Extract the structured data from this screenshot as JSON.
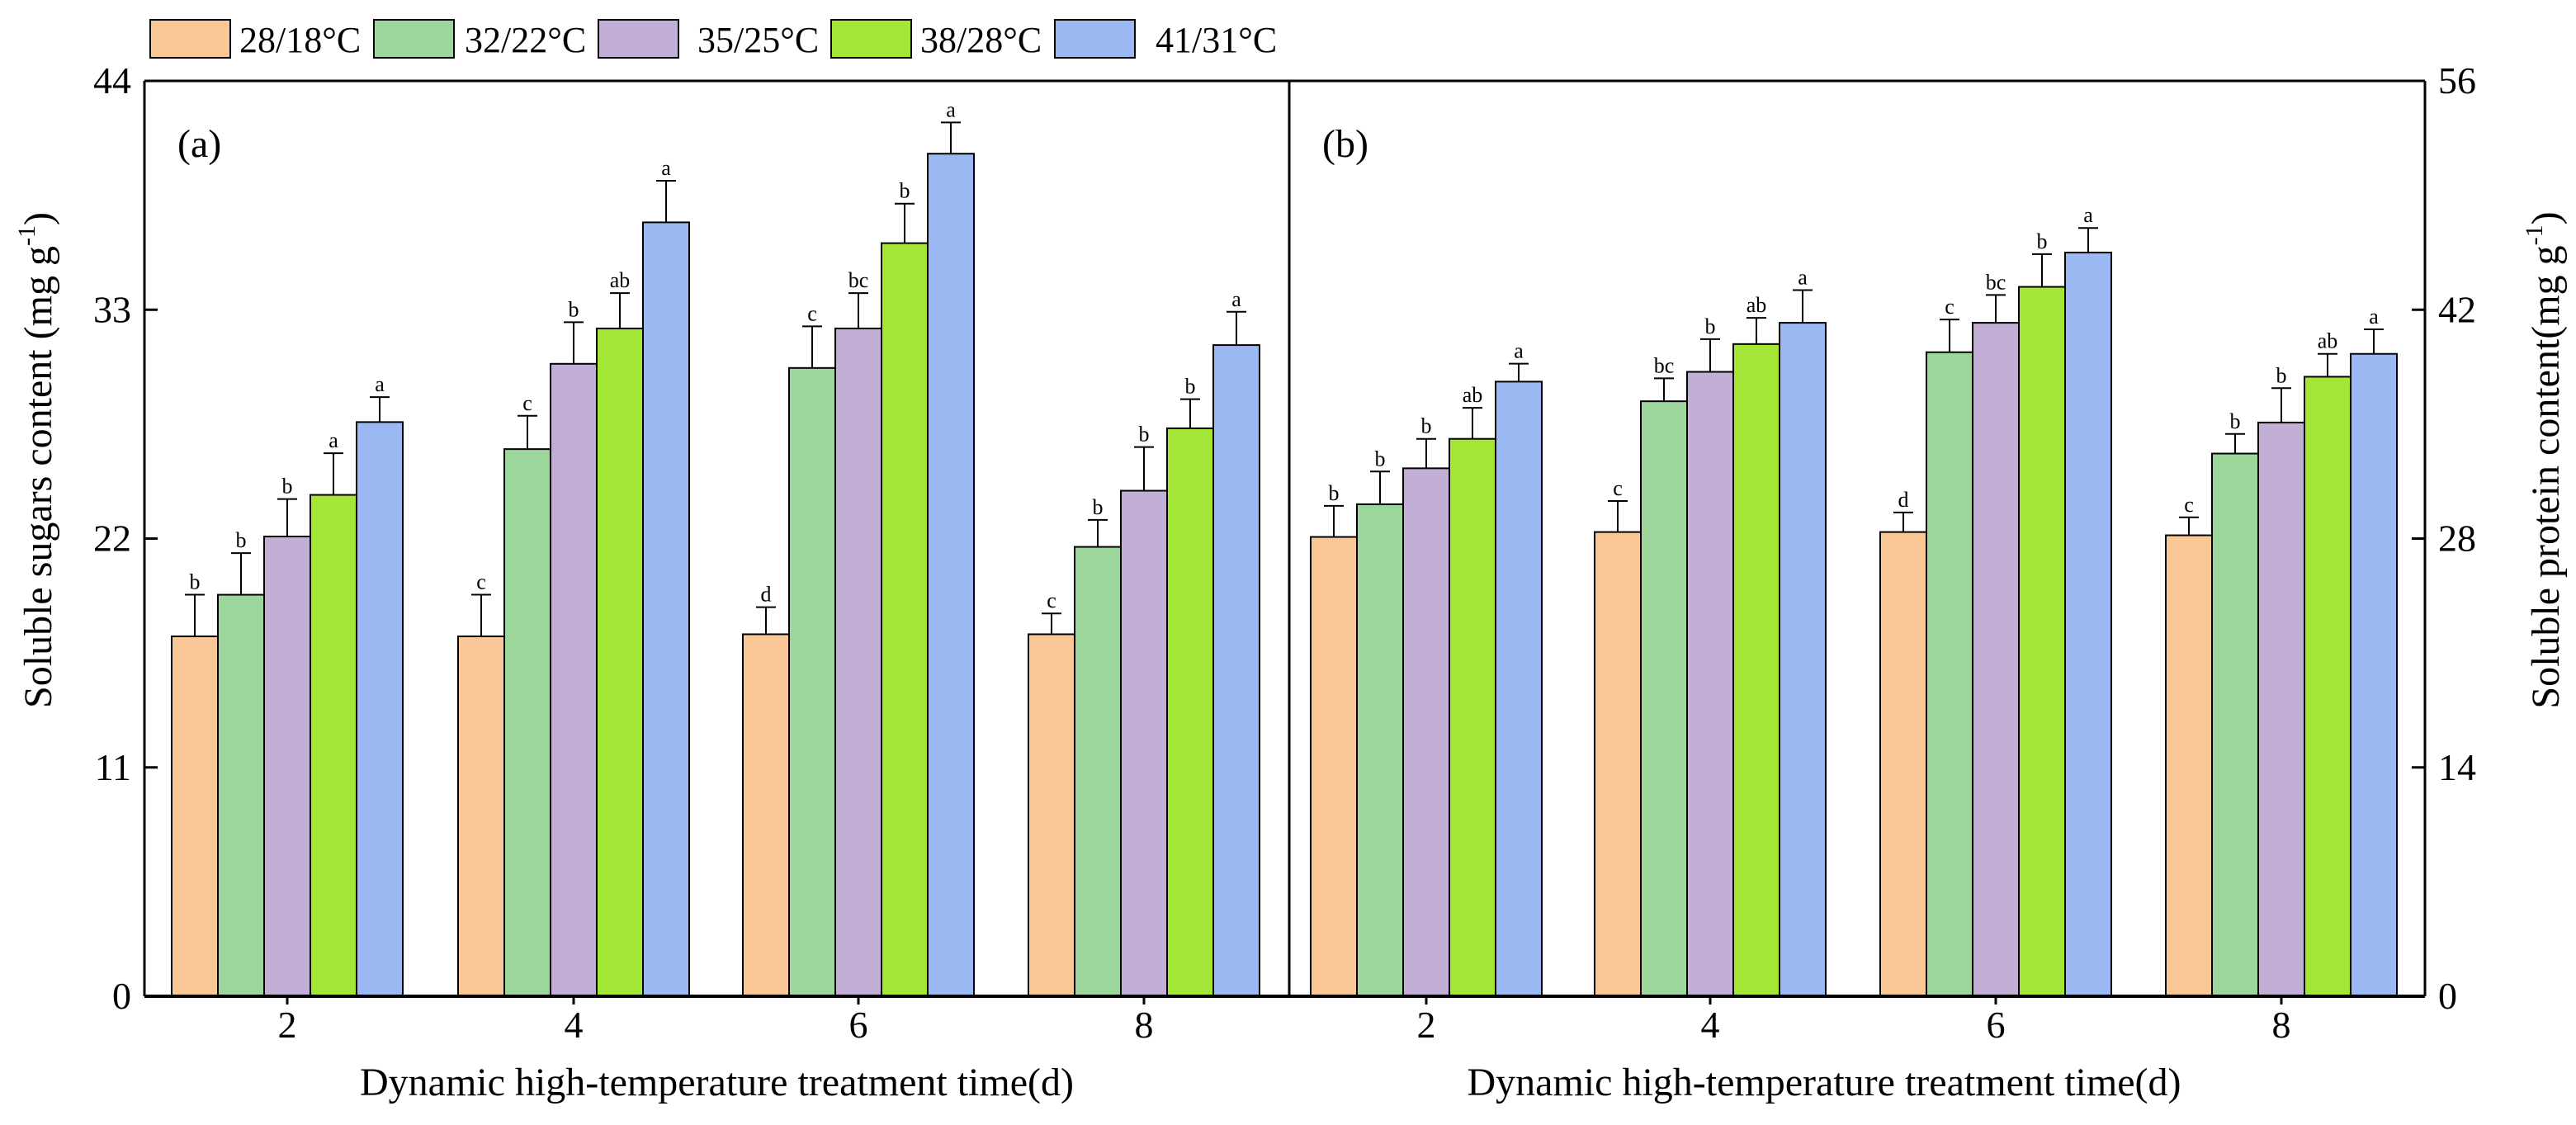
{
  "chart_data": [
    {
      "type": "bar",
      "panel_label": "(a)",
      "categories": [
        "2",
        "4",
        "6",
        "8"
      ],
      "xlabel": "Dynamic high-temperature treatment time(d)",
      "ylabel": "Soluble sugars content (mg g",
      "ylabel_sup": "-1",
      "ylabel_end": ")",
      "ylim": [
        0,
        44
      ],
      "yticks": [
        "0",
        "11",
        "22",
        "33",
        "44"
      ],
      "axis_side": "left",
      "series": [
        {
          "name": "28/18°C",
          "values": [
            17.3,
            17.3,
            17.4,
            17.4
          ],
          "errors": [
            2.0,
            2.0,
            1.3,
            1.0
          ],
          "letters": [
            "b",
            "c",
            "d",
            "c"
          ]
        },
        {
          "name": "32/22°C",
          "values": [
            19.3,
            26.3,
            30.2,
            21.6
          ],
          "errors": [
            2.0,
            1.6,
            2.0,
            1.3
          ],
          "letters": [
            "b",
            "c",
            "c",
            "b"
          ]
        },
        {
          "name": "35/25°C",
          "values": [
            22.1,
            30.4,
            32.1,
            24.3
          ],
          "errors": [
            1.8,
            2.0,
            1.7,
            2.1
          ],
          "letters": [
            "b",
            "b",
            "bc",
            "b"
          ]
        },
        {
          "name": "38/28°C",
          "values": [
            24.1,
            32.1,
            36.2,
            27.3
          ],
          "errors": [
            2.0,
            1.7,
            1.9,
            1.4
          ],
          "letters": [
            "a",
            "ab",
            "b",
            "b"
          ]
        },
        {
          "name": "41/31°C",
          "values": [
            27.6,
            37.2,
            40.5,
            31.3
          ],
          "errors": [
            1.2,
            2.0,
            1.5,
            1.6
          ],
          "letters": [
            "a",
            "a",
            "a",
            "a"
          ]
        }
      ]
    },
    {
      "type": "bar",
      "panel_label": "(b)",
      "categories": [
        "2",
        "4",
        "6",
        "8"
      ],
      "xlabel": "Dynamic high-temperature treatment time(d)",
      "ylabel": "Soluble protein content(mg g",
      "ylabel_sup": "-1",
      "ylabel_end": ")",
      "ylim": [
        0,
        56
      ],
      "yticks": [
        "0",
        "14",
        "28",
        "42",
        "56"
      ],
      "axis_side": "right",
      "series": [
        {
          "name": "28/18°C",
          "values": [
            28.1,
            28.4,
            28.4,
            28.2
          ],
          "errors": [
            1.9,
            1.9,
            1.2,
            1.1
          ],
          "letters": [
            "b",
            "c",
            "d",
            "c"
          ]
        },
        {
          "name": "32/22°C",
          "values": [
            30.1,
            36.4,
            39.4,
            33.2
          ],
          "errors": [
            2.0,
            1.4,
            2.0,
            1.2
          ],
          "letters": [
            "b",
            "bc",
            "c",
            "b"
          ]
        },
        {
          "name": "35/25°C",
          "values": [
            32.3,
            38.2,
            41.2,
            35.1
          ],
          "errors": [
            1.8,
            2.0,
            1.7,
            2.1
          ],
          "letters": [
            "b",
            "b",
            "bc",
            "b"
          ]
        },
        {
          "name": "38/28°C",
          "values": [
            34.1,
            39.9,
            43.4,
            37.9
          ],
          "errors": [
            1.9,
            1.6,
            2.0,
            1.4
          ],
          "letters": [
            "ab",
            "ab",
            "b",
            "ab"
          ]
        },
        {
          "name": "41/31°C",
          "values": [
            37.6,
            41.2,
            45.5,
            39.3
          ],
          "errors": [
            1.1,
            2.0,
            1.5,
            1.5
          ],
          "letters": [
            "a",
            "a",
            "a",
            "a"
          ]
        }
      ]
    }
  ],
  "legend": {
    "placement": "top",
    "items": [
      "28/18°C",
      "32/22°C",
      "35/25°C",
      "38/28°C",
      "41/31°C"
    ],
    "colors": [
      "#F9C896",
      "#9DD69B",
      "#C3AFD5",
      "#A3E635",
      "#9AB8F2"
    ]
  }
}
